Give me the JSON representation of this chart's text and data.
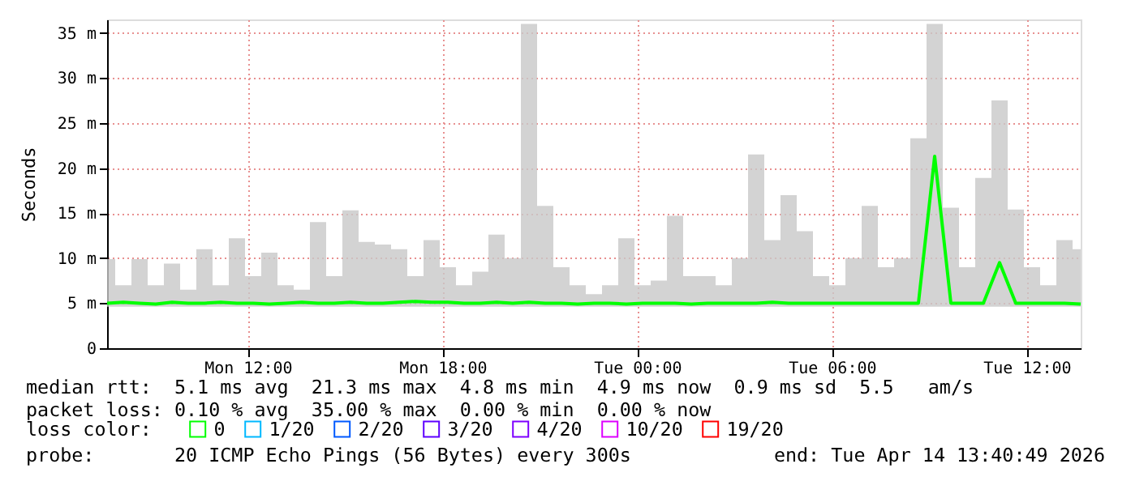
{
  "chart_data": {
    "type": "line",
    "ylabel": "Seconds",
    "x": [
      "2026-04-13T07:40",
      "2026-04-13T08:10",
      "2026-04-13T08:40",
      "2026-04-13T09:10",
      "2026-04-13T09:40",
      "2026-04-13T10:10",
      "2026-04-13T10:40",
      "2026-04-13T11:10",
      "2026-04-13T11:40",
      "2026-04-13T12:10",
      "2026-04-13T12:40",
      "2026-04-13T13:10",
      "2026-04-13T13:40",
      "2026-04-13T14:10",
      "2026-04-13T14:40",
      "2026-04-13T15:10",
      "2026-04-13T15:40",
      "2026-04-13T16:10",
      "2026-04-13T16:40",
      "2026-04-13T17:10",
      "2026-04-13T17:40",
      "2026-04-13T18:10",
      "2026-04-13T18:40",
      "2026-04-13T19:10",
      "2026-04-13T19:40",
      "2026-04-13T20:10",
      "2026-04-13T20:40",
      "2026-04-13T21:10",
      "2026-04-13T21:40",
      "2026-04-13T22:10",
      "2026-04-13T22:40",
      "2026-04-13T23:10",
      "2026-04-13T23:40",
      "2026-04-14T00:10",
      "2026-04-14T00:40",
      "2026-04-14T01:10",
      "2026-04-14T01:40",
      "2026-04-14T02:10",
      "2026-04-14T02:40",
      "2026-04-14T03:10",
      "2026-04-14T03:40",
      "2026-04-14T04:10",
      "2026-04-14T04:40",
      "2026-04-14T05:10",
      "2026-04-14T05:40",
      "2026-04-14T06:10",
      "2026-04-14T06:40",
      "2026-04-14T07:10",
      "2026-04-14T07:40",
      "2026-04-14T08:10",
      "2026-04-14T08:40",
      "2026-04-14T09:10",
      "2026-04-14T09:40",
      "2026-04-14T10:10",
      "2026-04-14T10:40",
      "2026-04-14T11:10",
      "2026-04-14T11:40",
      "2026-04-14T12:10",
      "2026-04-14T12:40",
      "2026-04-14T13:10",
      "2026-04-14T13:40"
    ],
    "series": [
      {
        "name": "0",
        "color": "#00ff00",
        "values": [
          5.0,
          5.1,
          5.0,
          4.9,
          5.1,
          5.0,
          5.0,
          5.1,
          5.0,
          5.0,
          4.9,
          5.0,
          5.1,
          5.0,
          5.0,
          5.1,
          5.0,
          5.0,
          5.1,
          5.2,
          5.1,
          5.1,
          5.0,
          5.0,
          5.1,
          5.0,
          5.1,
          5.0,
          5.0,
          4.9,
          5.0,
          5.0,
          4.9,
          5.0,
          5.0,
          5.0,
          4.9,
          5.0,
          5.0,
          5.0,
          5.0,
          5.1,
          5.0,
          5.0,
          5.0,
          5.0,
          5.0,
          5.0,
          5.0,
          5.0,
          5.0,
          21.3,
          5.0,
          5.0,
          5.0,
          9.5,
          5.0,
          5.0,
          5.0,
          5.0,
          4.9
        ],
        "lower": [
          4.6,
          4.6,
          4.6,
          4.6,
          4.6,
          4.6,
          4.6,
          4.6,
          4.6,
          4.6,
          4.6,
          4.6,
          4.6,
          4.6,
          4.6,
          4.6,
          4.6,
          4.6,
          4.6,
          4.6,
          4.6,
          4.6,
          4.6,
          4.6,
          4.6,
          4.6,
          4.6,
          4.6,
          4.6,
          4.6,
          4.6,
          4.6,
          4.6,
          4.6,
          4.6,
          4.6,
          4.6,
          4.6,
          4.6,
          4.6,
          4.6,
          4.6,
          4.6,
          4.6,
          4.6,
          4.6,
          4.6,
          4.6,
          4.6,
          4.6,
          4.6,
          4.6,
          4.6,
          4.6,
          4.6,
          4.6,
          4.6,
          4.6,
          4.6,
          4.6,
          4.6
        ],
        "upper": [
          9.9,
          7.0,
          9.9,
          7.0,
          9.4,
          6.5,
          11.0,
          7.0,
          12.2,
          8.0,
          10.6,
          7.0,
          6.5,
          14.0,
          8.0,
          15.3,
          11.8,
          11.5,
          11.0,
          8.0,
          12.0,
          9.0,
          7.0,
          8.5,
          12.6,
          10.0,
          36.0,
          15.8,
          9.0,
          7.0,
          6.0,
          7.0,
          12.2,
          7.0,
          7.5,
          14.7,
          8.0,
          8.0,
          7.0,
          10.0,
          21.5,
          12.0,
          17.0,
          13.0,
          8.0,
          7.0,
          10.0,
          15.8,
          9.0,
          10.0,
          23.3,
          36.0,
          15.6,
          9.0,
          18.9,
          27.5,
          15.4,
          9.0,
          7.0,
          12.0,
          11.0
        ]
      },
      {
        "name": "1/20",
        "color": "#00b8ff",
        "values": [
          null,
          null,
          null,
          null,
          null,
          null,
          null,
          null,
          null,
          null,
          null,
          null,
          null,
          null,
          null,
          null,
          null,
          null,
          null,
          null,
          null,
          null,
          null,
          null,
          null,
          null,
          null,
          null,
          null,
          null,
          null,
          null,
          null,
          null,
          null,
          null,
          null,
          null,
          null,
          null,
          null,
          null,
          null,
          null,
          null,
          null,
          null,
          null,
          null,
          null,
          null,
          null,
          null,
          null,
          null,
          null,
          null,
          null,
          null,
          null,
          null
        ]
      },
      {
        "name": "2/20",
        "color": "#0059ff",
        "values": [
          null,
          null,
          null,
          null,
          null,
          null,
          null,
          null,
          null,
          null,
          null,
          null,
          null,
          null,
          null,
          null,
          null,
          null,
          null,
          null,
          null,
          null,
          null,
          null,
          null,
          null,
          null,
          null,
          null,
          null,
          null,
          null,
          null,
          null,
          null,
          null,
          null,
          null,
          null,
          null,
          null,
          null,
          null,
          null,
          null,
          null,
          null,
          null,
          null,
          null,
          null,
          null,
          null,
          null,
          null,
          null,
          null,
          null,
          null,
          null,
          null
        ]
      },
      {
        "name": "3/20",
        "color": "#5e00ff",
        "values": [
          null,
          null,
          null,
          null,
          null,
          null,
          null,
          null,
          null,
          null,
          null,
          null,
          null,
          null,
          null,
          null,
          null,
          null,
          null,
          null,
          null,
          null,
          null,
          null,
          null,
          null,
          null,
          null,
          null,
          null,
          null,
          null,
          null,
          null,
          null,
          null,
          null,
          null,
          null,
          null,
          null,
          null,
          null,
          null,
          null,
          null,
          null,
          null,
          null,
          null,
          null,
          null,
          null,
          null,
          null,
          null,
          null,
          null,
          null,
          null,
          null
        ]
      },
      {
        "name": "4/20",
        "color": "#7e00ff",
        "values": [
          null,
          null,
          null,
          null,
          null,
          null,
          null,
          null,
          null,
          null,
          null,
          null,
          null,
          null,
          null,
          null,
          null,
          null,
          null,
          null,
          null,
          null,
          null,
          null,
          null,
          null,
          null,
          null,
          null,
          null,
          null,
          null,
          null,
          null,
          null,
          null,
          null,
          null,
          null,
          null,
          null,
          null,
          null,
          null,
          null,
          null,
          null,
          null,
          null,
          null,
          null,
          null,
          null,
          null,
          null,
          null,
          null,
          null,
          null,
          null,
          null
        ]
      },
      {
        "name": "10/20",
        "color": "#dd00ff",
        "values": [
          null,
          null,
          null,
          null,
          null,
          null,
          null,
          null,
          null,
          null,
          null,
          null,
          null,
          null,
          null,
          null,
          null,
          null,
          null,
          null,
          null,
          null,
          null,
          null,
          null,
          null,
          null,
          null,
          null,
          null,
          null,
          null,
          null,
          null,
          null,
          null,
          null,
          null,
          null,
          null,
          null,
          null,
          null,
          null,
          null,
          null,
          null,
          null,
          null,
          null,
          null,
          null,
          null,
          null,
          null,
          null,
          null,
          null,
          null,
          null,
          null
        ]
      },
      {
        "name": "19/20",
        "color": "#ff0000",
        "values": [
          null,
          null,
          null,
          null,
          null,
          null,
          null,
          null,
          null,
          null,
          null,
          null,
          null,
          null,
          null,
          null,
          null,
          null,
          null,
          null,
          null,
          null,
          null,
          null,
          null,
          null,
          null,
          null,
          null,
          null,
          null,
          null,
          null,
          null,
          null,
          null,
          null,
          null,
          null,
          null,
          null,
          null,
          null,
          null,
          null,
          null,
          null,
          null,
          null,
          null,
          null,
          null,
          null,
          null,
          null,
          null,
          null,
          null,
          null,
          null,
          null
        ]
      }
    ],
    "legend_title": "loss color:",
    "legend": "bottom",
    "xlim": [
      "2026-04-13T07:40",
      "2026-04-14T13:40"
    ],
    "xticks": [
      {
        "value": "2026-04-13T12:00",
        "label": "Mon 12:00"
      },
      {
        "value": "2026-04-13T18:00",
        "label": "Mon 18:00"
      },
      {
        "value": "2026-04-14T00:00",
        "label": "Tue 00:00"
      },
      {
        "value": "2026-04-14T06:00",
        "label": "Tue 06:00"
      },
      {
        "value": "2026-04-14T12:00",
        "label": "Tue 12:00"
      }
    ],
    "ylim": [
      0,
      36.5
    ],
    "yticks": [
      0,
      {
        "value": 5,
        "label": "5 m"
      },
      {
        "value": 10,
        "label": "10 m"
      },
      {
        "value": 15,
        "label": "15 m"
      },
      {
        "value": 20,
        "label": "20 m"
      },
      {
        "value": 25,
        "label": "25 m"
      },
      {
        "value": 30,
        "label": "30 m"
      },
      {
        "value": 35,
        "label": "35 m"
      }
    ],
    "grid": true,
    "annotations": [
      "median rtt:  5.1 ms avg  21.3 ms max  4.8 ms min  4.9 ms now  0.9 ms sd  5.5   am/s",
      "packet loss: 0.10 % avg  35.00 % max  0.00 % min  0.00 % now",
      "probe:       20 ICMP Echo Pings (56 Bytes) every 300s",
      "end: Tue Apr 14 13:40:49 2026"
    ]
  }
}
